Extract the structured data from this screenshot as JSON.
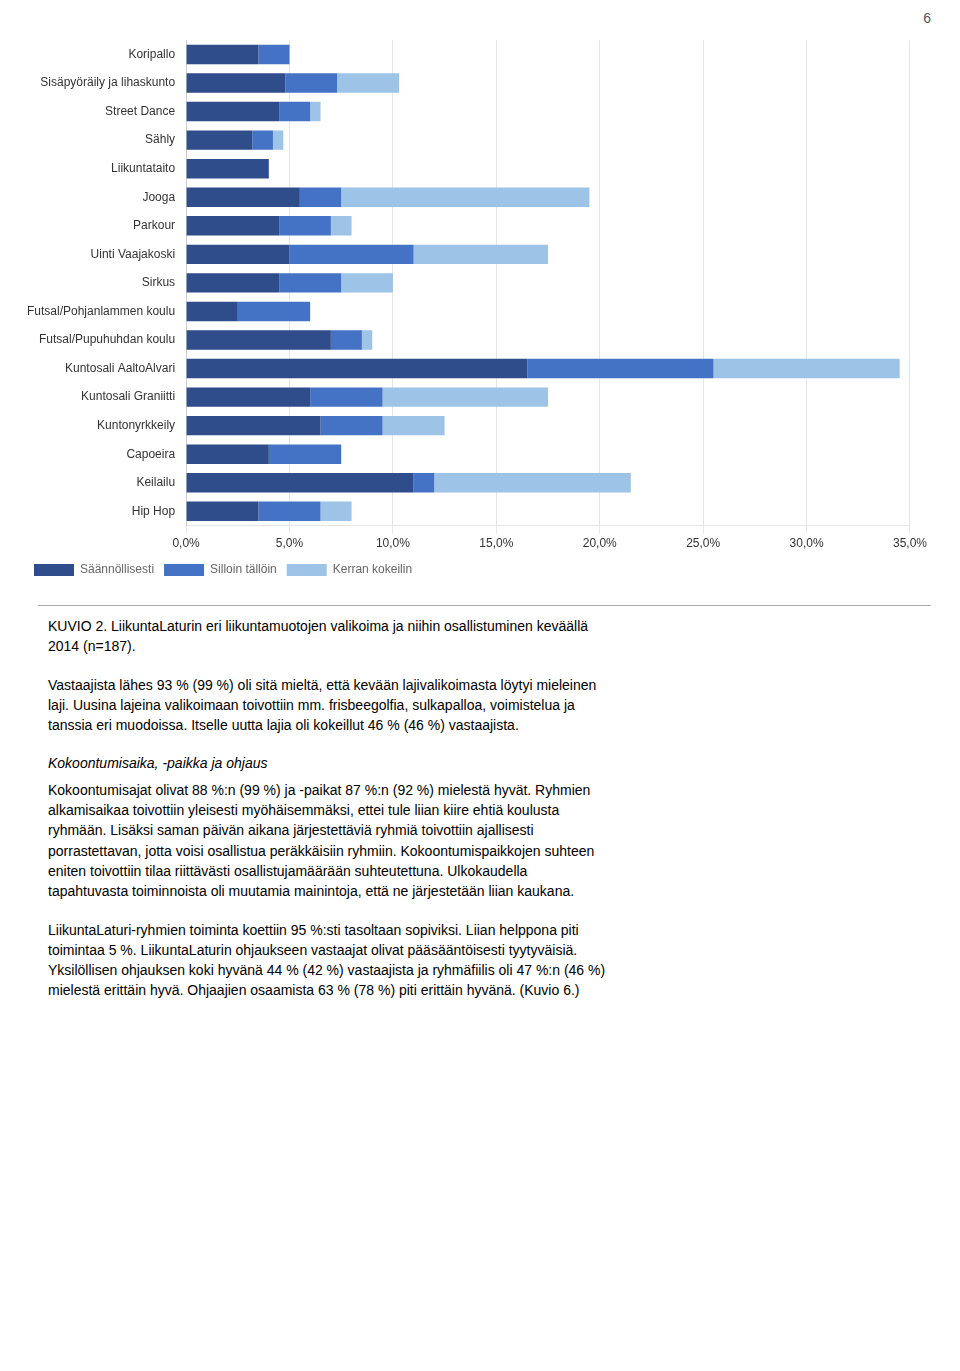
{
  "chart_data": {
    "type": "bar",
    "orientation": "horizontal",
    "stacked": true,
    "categories": [
      "Koripallo",
      "Sisäpyöräily ja lihaskunto",
      "Street Dance",
      "Sähly",
      "Liikuntataito",
      "Jooga",
      "Parkour",
      "Uinti Vaajakoski",
      "Sirkus",
      "Futsal/Pohjanlammen koulu",
      "Futsal/Pupuhuhdan koulu",
      "Kuntosali AaltoAlvari",
      "Kuntosali Graniitti",
      "Kuntonyrkkeily",
      "Capoeira",
      "Keilailu",
      "Hip Hop"
    ],
    "series": [
      {
        "name": "Säännöllisesti",
        "color": "#2E4D8A",
        "values": [
          3.5,
          4.8,
          4.5,
          3.2,
          4.0,
          5.5,
          4.5,
          5.0,
          4.5,
          2.5,
          7.0,
          16.5,
          6.0,
          6.5,
          4.0,
          11.0,
          3.5
        ]
      },
      {
        "name": "Silloin tällöin",
        "color": "#4472C4",
        "values": [
          1.5,
          2.5,
          1.5,
          1.0,
          0.0,
          2.0,
          2.5,
          6.0,
          3.0,
          3.5,
          1.5,
          9.0,
          3.5,
          3.0,
          3.5,
          1.0,
          3.0
        ]
      },
      {
        "name": "Kerran kokeilin",
        "color": "#9DC3E6",
        "values": [
          0.0,
          3.0,
          0.5,
          0.5,
          0.0,
          12.0,
          1.0,
          6.5,
          2.5,
          0.0,
          0.5,
          9.0,
          8.0,
          3.0,
          0.0,
          9.5,
          1.5
        ]
      }
    ],
    "xlim": [
      0,
      35
    ],
    "xticks": [
      {
        "value": 0,
        "label": "0,0%"
      },
      {
        "value": 5,
        "label": "5,0%"
      },
      {
        "value": 10,
        "label": "10,0%"
      },
      {
        "value": 15,
        "label": "15,0%"
      },
      {
        "value": 20,
        "label": "20,0%"
      },
      {
        "value": 25,
        "label": "25,0%"
      },
      {
        "value": 30,
        "label": "30,0%"
      },
      {
        "value": 35,
        "label": "35,0%"
      }
    ],
    "grid": true,
    "legend": "bottom",
    "annotations": [
      "6",
      "KUVIO 2. LiikuntaLaturin eri liikuntamuotojen valikoima ja niihin osallistuminen keväällä\n2014 (n=187).",
      "Vastaajista lähes 93 % (99 %) oli sitä mieltä, että kevään lajivalikoimasta löytyi mieleinen\nlaji. Uusina lajeina valikoimaan toivottiin mm. frisbeegolfia, sulkapalloa, voimistelua ja\ntanssia eri muodoissa. Itselle uutta lajia oli kokeillut 46 % (46 %) vastaajista.",
      "Kokoontumisaika, -paikka ja ohjaus",
      "Kokoontumisajat olivat 88 %:n (99 %) ja -paikat 87 %:n (92 %) mielestä hyvät. Ryhmien\nalkamisaikaa toivottiin yleisesti myöhäisemmäksi, ettei tule liian kiire ehtiä koulusta\nryhmään. Lisäksi saman päivän aikana järjestettäviä ryhmiä toivottiin ajallisesti\nporrastettavan, jotta voisi osallistua peräkkäisiin ryhmiin. Kokoontumispaikkojen suhteen\neniten toivottiin tilaa riittävästi osallistujamäärään suhteutettuna. Ulkokaudella\ntapahtuvasta toiminnoista oli muutamia mainintoja, että ne järjestetään liian kaukana.",
      "LiikuntaLaturi-ryhmien toiminta koettiin 95 %:sti tasoltaan sopiviksi. Liian helppona piti\ntoimintaa 5 %. LiikuntaLaturin ohjaukseen vastaajat olivat pääsääntöisesti tyytyväisiä.\nYksilöllisen ohjauksen koki hyvänä 44 % (42 %) vastaajista ja ryhmäfiilis oli 47 %:n (46 %)\nmielestä erittäin hyvä. Ohjaajien osaamista 63 % (78 %) piti erittäin hyvänä. (Kuvio 6.)"
    ]
  }
}
